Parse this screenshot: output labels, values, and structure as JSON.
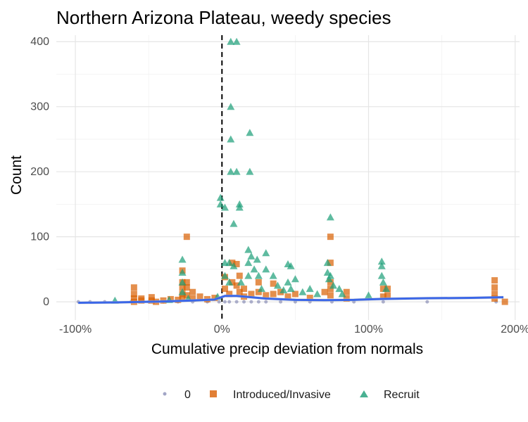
{
  "chart_data": {
    "type": "scatter",
    "title": "Northern Arizona Plateau, weedy species",
    "xlabel": "Cumulative precip deviation from normals",
    "ylabel": "Count",
    "xlim": [
      -1.13,
      2.03
    ],
    "ylim": [
      -28,
      410
    ],
    "x_ticks": [
      {
        "value": -1,
        "label": "-100%"
      },
      {
        "value": 0,
        "label": "0%"
      },
      {
        "value": 1,
        "label": "100%"
      },
      {
        "value": 2,
        "label": "200%"
      }
    ],
    "y_ticks": [
      {
        "value": 0,
        "label": "0"
      },
      {
        "value": 100,
        "label": "100"
      },
      {
        "value": 200,
        "label": "200"
      },
      {
        "value": 300,
        "label": "300"
      },
      {
        "value": 400,
        "label": "400"
      }
    ],
    "reference_line": {
      "x": 0,
      "style": "dashed"
    },
    "legend_position": "bottom",
    "series": [
      {
        "name": "0",
        "marker": "circle",
        "color": "#8b90b8",
        "points": [
          [
            -0.98,
            0
          ],
          [
            -0.9,
            0
          ],
          [
            -0.8,
            0
          ],
          [
            -0.62,
            0
          ],
          [
            -0.5,
            0
          ],
          [
            -0.4,
            0
          ],
          [
            -0.3,
            0
          ],
          [
            -0.2,
            0
          ],
          [
            -0.1,
            0
          ],
          [
            -0.02,
            0
          ],
          [
            0.02,
            0
          ],
          [
            0.05,
            0
          ],
          [
            0.1,
            0
          ],
          [
            0.15,
            0
          ],
          [
            0.2,
            0
          ],
          [
            0.25,
            0
          ],
          [
            0.3,
            0
          ],
          [
            0.4,
            0
          ],
          [
            0.5,
            0
          ],
          [
            0.6,
            0
          ],
          [
            0.75,
            0
          ],
          [
            0.9,
            0
          ],
          [
            1.1,
            0
          ],
          [
            1.4,
            0
          ],
          [
            1.87,
            0
          ]
        ]
      },
      {
        "name": "Introduced/Invasive",
        "marker": "square",
        "color": "#d95f02",
        "points": [
          [
            -0.6,
            22
          ],
          [
            -0.6,
            12
          ],
          [
            -0.6,
            5
          ],
          [
            -0.6,
            0
          ],
          [
            -0.55,
            5
          ],
          [
            -0.55,
            2
          ],
          [
            -0.48,
            7
          ],
          [
            -0.48,
            2
          ],
          [
            -0.45,
            0
          ],
          [
            -0.4,
            2
          ],
          [
            -0.35,
            4
          ],
          [
            -0.3,
            3
          ],
          [
            -0.27,
            48
          ],
          [
            -0.27,
            30
          ],
          [
            -0.27,
            22
          ],
          [
            -0.27,
            12
          ],
          [
            -0.27,
            5
          ],
          [
            -0.24,
            100
          ],
          [
            -0.24,
            30
          ],
          [
            -0.24,
            22
          ],
          [
            -0.24,
            10
          ],
          [
            -0.2,
            15
          ],
          [
            -0.2,
            5
          ],
          [
            -0.15,
            8
          ],
          [
            -0.1,
            4
          ],
          [
            -0.05,
            6
          ],
          [
            0.02,
            38
          ],
          [
            0.02,
            20
          ],
          [
            0.05,
            12
          ],
          [
            0.07,
            60
          ],
          [
            0.07,
            30
          ],
          [
            0.1,
            58
          ],
          [
            0.1,
            25
          ],
          [
            0.12,
            40
          ],
          [
            0.12,
            15
          ],
          [
            0.15,
            20
          ],
          [
            0.15,
            8
          ],
          [
            0.2,
            12
          ],
          [
            0.25,
            30
          ],
          [
            0.25,
            15
          ],
          [
            0.3,
            10
          ],
          [
            0.35,
            28
          ],
          [
            0.35,
            12
          ],
          [
            0.4,
            15
          ],
          [
            0.45,
            8
          ],
          [
            0.5,
            12
          ],
          [
            0.6,
            6
          ],
          [
            0.7,
            15
          ],
          [
            0.74,
            100
          ],
          [
            0.74,
            60
          ],
          [
            0.74,
            30
          ],
          [
            0.74,
            20
          ],
          [
            0.74,
            10
          ],
          [
            0.85,
            15
          ],
          [
            0.85,
            5
          ],
          [
            1.1,
            20
          ],
          [
            1.1,
            8
          ],
          [
            1.13,
            20
          ],
          [
            1.13,
            10
          ],
          [
            1.86,
            33
          ],
          [
            1.86,
            22
          ],
          [
            1.86,
            12
          ],
          [
            1.86,
            5
          ],
          [
            1.93,
            0
          ]
        ]
      },
      {
        "name": "Recruit",
        "marker": "triangle",
        "color": "#1b9e77",
        "points": [
          [
            -0.73,
            2
          ],
          [
            -0.36,
            3
          ],
          [
            -0.27,
            65
          ],
          [
            -0.27,
            45
          ],
          [
            -0.27,
            30
          ],
          [
            -0.27,
            15
          ],
          [
            -0.23,
            5
          ],
          [
            -0.03,
            8
          ],
          [
            -0.01,
            160
          ],
          [
            -0.01,
            150
          ],
          [
            0.02,
            145
          ],
          [
            0.02,
            60
          ],
          [
            0.02,
            40
          ],
          [
            0.05,
            60
          ],
          [
            0.05,
            30
          ],
          [
            0.06,
            400
          ],
          [
            0.06,
            300
          ],
          [
            0.06,
            250
          ],
          [
            0.06,
            200
          ],
          [
            0.1,
            400
          ],
          [
            0.1,
            200
          ],
          [
            0.08,
            120
          ],
          [
            0.08,
            55
          ],
          [
            0.12,
            150
          ],
          [
            0.12,
            145
          ],
          [
            0.13,
            30
          ],
          [
            0.18,
            80
          ],
          [
            0.18,
            60
          ],
          [
            0.18,
            40
          ],
          [
            0.19,
            260
          ],
          [
            0.19,
            200
          ],
          [
            0.2,
            70
          ],
          [
            0.22,
            50
          ],
          [
            0.24,
            65
          ],
          [
            0.25,
            40
          ],
          [
            0.27,
            20
          ],
          [
            0.3,
            75
          ],
          [
            0.3,
            50
          ],
          [
            0.35,
            40
          ],
          [
            0.38,
            25
          ],
          [
            0.42,
            18
          ],
          [
            0.45,
            58
          ],
          [
            0.45,
            30
          ],
          [
            0.47,
            55
          ],
          [
            0.47,
            20
          ],
          [
            0.5,
            35
          ],
          [
            0.55,
            15
          ],
          [
            0.6,
            20
          ],
          [
            0.65,
            12
          ],
          [
            0.72,
            60
          ],
          [
            0.72,
            45
          ],
          [
            0.73,
            35
          ],
          [
            0.74,
            130
          ],
          [
            0.74,
            40
          ],
          [
            0.76,
            25
          ],
          [
            0.8,
            20
          ],
          [
            0.82,
            12
          ],
          [
            1.0,
            10
          ],
          [
            1.09,
            62
          ],
          [
            1.09,
            55
          ],
          [
            1.09,
            40
          ],
          [
            1.1,
            30
          ],
          [
            1.12,
            20
          ]
        ]
      }
    ],
    "smooth": {
      "color": "#3b67e8",
      "band_color": "#c8c8c8",
      "points": [
        [
          -0.98,
          -1.5
        ],
        [
          -0.7,
          -0.8
        ],
        [
          -0.4,
          0.5
        ],
        [
          -0.2,
          2
        ],
        [
          -0.05,
          3.5
        ],
        [
          0.02,
          9
        ],
        [
          0.1,
          9
        ],
        [
          0.2,
          7
        ],
        [
          0.3,
          5
        ],
        [
          0.5,
          3
        ],
        [
          0.7,
          2.5
        ],
        [
          0.9,
          3
        ],
        [
          1.1,
          4.5
        ],
        [
          1.4,
          5.5
        ],
        [
          1.7,
          6
        ],
        [
          1.92,
          7
        ]
      ]
    },
    "legend": [
      {
        "label": "0",
        "marker": "circle",
        "color": "#8b90b8"
      },
      {
        "label": "Introduced/Invasive",
        "marker": "square",
        "color": "#d95f02"
      },
      {
        "label": "Recruit",
        "marker": "triangle",
        "color": "#1b9e77"
      }
    ]
  }
}
